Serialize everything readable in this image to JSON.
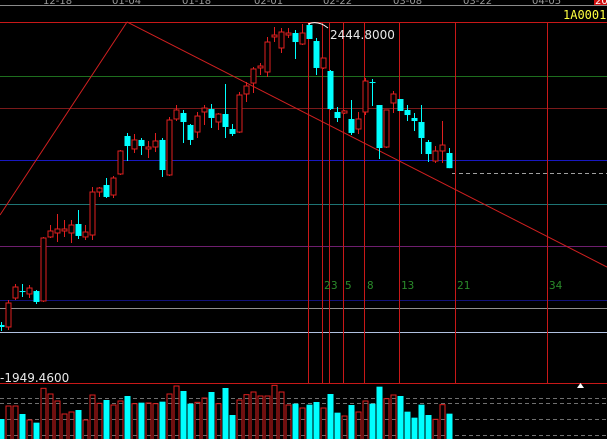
{
  "header": {
    "symbol_code": "1A0001",
    "period_badge": "20",
    "date_ticks": [
      "12-18",
      "01-04",
      "01-18",
      "02-01",
      "02-22",
      "03-08",
      "03-22",
      "04-05"
    ]
  },
  "colors": {
    "up": "#e02020",
    "down": "#00ffff",
    "fib_label": "#2a8a2a",
    "symbol": "#ffff40"
  },
  "chart_data": {
    "type": "candlestick",
    "title": "",
    "high_label": "2444.8000",
    "low_label": "-1949.4600",
    "ylim": [
      1949.46,
      2444.8
    ],
    "fib_labels": [
      "2",
      "3",
      "5",
      "8",
      "13",
      "21",
      "34"
    ],
    "ohlc": [
      [
        2027.2,
        2031.3,
        2018.8,
        2024.4
      ],
      [
        2024.4,
        2061.9,
        2020.2,
        2057.7
      ],
      [
        2064.6,
        2084.1,
        2061.9,
        2079.9
      ],
      [
        2074.3,
        2084.1,
        2066.0,
        2072.9
      ],
      [
        2070.2,
        2082.7,
        2064.6,
        2078.5
      ],
      [
        2074.3,
        2075.7,
        2056.3,
        2059.1
      ],
      [
        2060.5,
        2149.3,
        2059.1,
        2147.9
      ],
      [
        2149.3,
        2165.9,
        2147.9,
        2157.6
      ],
      [
        2154.8,
        2181.2,
        2142.3,
        2160.4
      ],
      [
        2157.6,
        2172.9,
        2149.3,
        2160.4
      ],
      [
        2154.8,
        2172.9,
        2140.9,
        2165.9
      ],
      [
        2167.3,
        2186.7,
        2146.5,
        2150.7
      ],
      [
        2149.3,
        2165.9,
        2145.1,
        2156.2
      ],
      [
        2152.0,
        2218.6,
        2145.1,
        2211.7
      ],
      [
        2211.7,
        2218.6,
        2204.8,
        2217.2
      ],
      [
        2221.4,
        2231.1,
        2203.4,
        2204.8
      ],
      [
        2207.5,
        2233.9,
        2203.4,
        2231.1
      ],
      [
        2236.7,
        2270.0,
        2235.3,
        2268.6
      ],
      [
        2289.4,
        2293.6,
        2254.7,
        2275.5
      ],
      [
        2271.4,
        2292.2,
        2265.8,
        2283.9
      ],
      [
        2283.9,
        2286.6,
        2263.0,
        2275.5
      ],
      [
        2271.4,
        2282.5,
        2258.9,
        2274.1
      ],
      [
        2274.1,
        2293.6,
        2267.2,
        2282.5
      ],
      [
        2283.9,
        2286.6,
        2232.5,
        2242.2
      ],
      [
        2235.3,
        2315.8,
        2233.9,
        2311.6
      ],
      [
        2313.0,
        2332.4,
        2310.2,
        2325.5
      ],
      [
        2321.3,
        2325.5,
        2279.7,
        2308.8
      ],
      [
        2304.7,
        2306.1,
        2276.9,
        2283.9
      ],
      [
        2294.9,
        2322.7,
        2286.6,
        2317.1
      ],
      [
        2322.7,
        2332.4,
        2304.7,
        2328.2
      ],
      [
        2326.8,
        2333.8,
        2300.5,
        2314.4
      ],
      [
        2308.8,
        2321.3,
        2297.7,
        2319.9
      ],
      [
        2319.9,
        2361.6,
        2286.6,
        2301.9
      ],
      [
        2299.1,
        2306.1,
        2289.4,
        2292.2
      ],
      [
        2294.9,
        2350.4,
        2293.6,
        2346.3
      ],
      [
        2347.7,
        2364.3,
        2336.6,
        2358.8
      ],
      [
        2362.9,
        2385.1,
        2349.1,
        2382.4
      ],
      [
        2383.8,
        2390.7,
        2374.0,
        2386.5
      ],
      [
        2378.2,
        2426.8,
        2371.3,
        2419.8
      ],
      [
        2426.8,
        2440.6,
        2419.8,
        2429.5
      ],
      [
        2411.5,
        2439.2,
        2404.6,
        2433.7
      ],
      [
        2429.5,
        2439.2,
        2425.4,
        2432.3
      ],
      [
        2432.3,
        2436.5,
        2396.2,
        2419.8
      ],
      [
        2417.0,
        2444.8,
        2415.7,
        2432.3
      ],
      [
        2443.4,
        2444.8,
        2424.0,
        2424.0
      ],
      [
        2421.2,
        2425.4,
        2374.0,
        2383.8
      ],
      [
        2383.8,
        2397.6,
        2382.4,
        2397.6
      ],
      [
        2379.6,
        2381.0,
        2325.5,
        2326.8
      ],
      [
        2322.7,
        2329.6,
        2308.8,
        2314.4
      ],
      [
        2321.3,
        2325.5,
        2319.9,
        2324.1
      ],
      [
        2313.0,
        2339.4,
        2290.8,
        2293.6
      ],
      [
        2299.1,
        2322.7,
        2292.2,
        2313.0
      ],
      [
        2322.7,
        2369.9,
        2318.5,
        2365.7
      ],
      [
        2364.3,
        2368.5,
        2331.0,
        2362.9
      ],
      [
        2332.4,
        2332.4,
        2257.5,
        2272.7
      ],
      [
        2274.1,
        2325.5,
        2272.7,
        2325.5
      ],
      [
        2335.2,
        2351.8,
        2321.3,
        2347.7
      ],
      [
        2340.7,
        2340.7,
        2324.1,
        2324.1
      ],
      [
        2325.5,
        2332.4,
        2310.2,
        2318.5
      ],
      [
        2314.4,
        2321.3,
        2296.3,
        2310.2
      ],
      [
        2308.8,
        2332.4,
        2264.4,
        2286.6
      ],
      [
        2281.1,
        2283.9,
        2253.3,
        2264.4
      ],
      [
        2254.7,
        2275.5,
        2251.9,
        2268.6
      ],
      [
        2268.6,
        2310.2,
        2251.9,
        2276.9
      ],
      [
        2265.8,
        2272.7,
        2244.8,
        2244.8
      ]
    ],
    "volume": [
      60,
      99,
      99,
      75,
      57,
      49,
      152,
      135,
      114,
      75,
      81,
      87,
      57,
      132,
      107,
      117,
      102,
      114,
      129,
      106,
      109,
      108,
      106,
      112,
      135,
      159,
      144,
      106,
      110,
      123,
      141,
      106,
      153,
      72,
      117,
      133,
      141,
      129,
      129,
      161,
      141,
      102,
      106,
      93,
      103,
      111,
      93,
      135,
      79,
      69,
      102,
      81,
      114,
      106,
      157,
      121,
      132,
      129,
      82,
      64,
      103,
      72,
      59,
      103,
      76
    ]
  }
}
